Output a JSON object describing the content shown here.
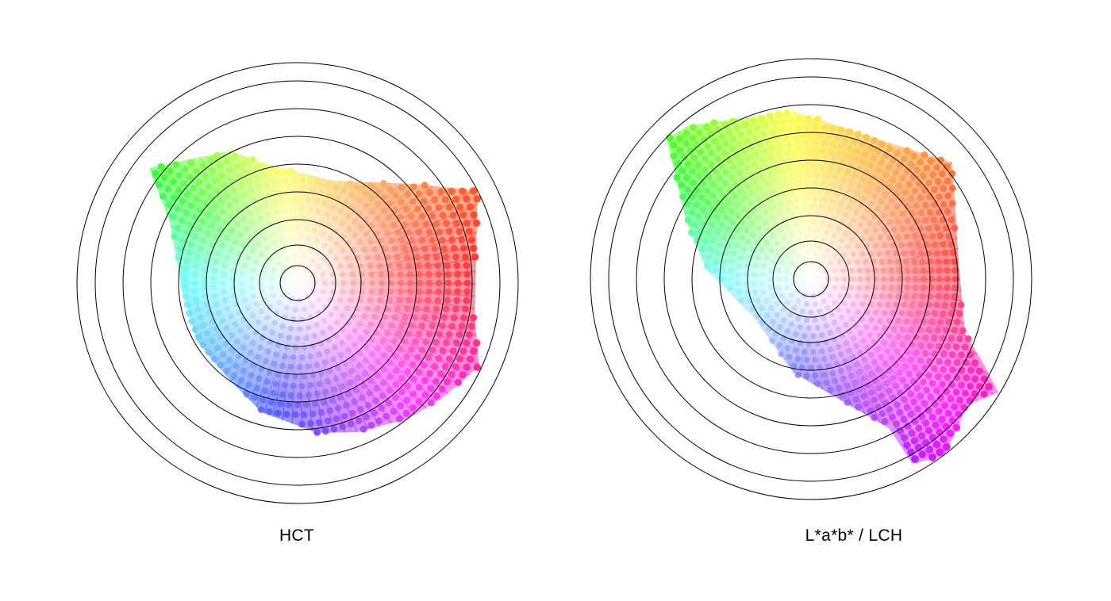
{
  "figures": [
    {
      "id": "hct",
      "label": "HCT",
      "description_rings": 9,
      "model": "hct"
    },
    {
      "id": "lab",
      "label": "L*a*b* / LCH",
      "description_rings": 9,
      "model": "lab"
    }
  ],
  "colors": {
    "ring_stroke": "#000000",
    "background": "#ffffff"
  }
}
